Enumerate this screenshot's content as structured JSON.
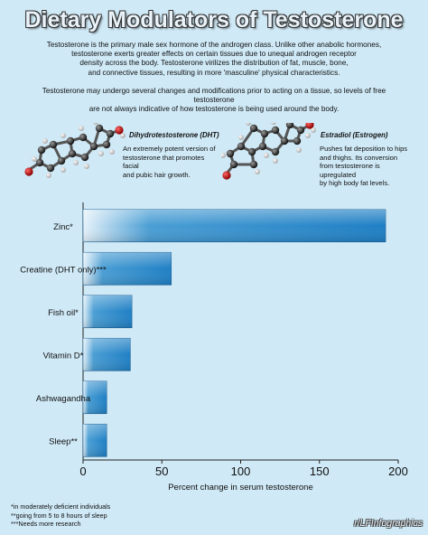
{
  "header": {
    "title": "Dietary Modulators of Testosterone",
    "intro_lines": [
      "Testosterone is the primary male sex hormone of the androgen class. Unlike other anabolic hormones,",
      "testosterone exerts greater effects on certain tissues due to unequal androgen receptor",
      "density across the body.  Testosterone virilizes the distribution of fat, muscle, bone,",
      "and connective tissues, resulting in more 'masculine' physical characteristics."
    ],
    "intro2_lines": [
      "Testosterone may undergo several changes and modifications prior to acting on a tissue, so levels of free testosterone",
      "are not always indicative of how testosterone is being used around the body."
    ]
  },
  "molecules": {
    "dht": {
      "title": "Dihydrotestosterone (DHT)",
      "desc_lines": [
        "An extremely potent version of",
        "testosterone that promotes facial",
        "and pubic hair growth."
      ]
    },
    "estradiol": {
      "title": "Estradiol (Estrogen)",
      "desc_lines": [
        "Pushes fat deposition to hips",
        "and thighs. Its conversion",
        "from testosterone is upregulated",
        "by high body fat levels."
      ]
    }
  },
  "chart_data": {
    "type": "bar",
    "orientation": "horizontal",
    "categories": [
      "Zinc*",
      "Creatine (DHT only)***",
      "Fish oil*",
      "Vitamin D*",
      "Ashwagandha",
      "Sleep**"
    ],
    "values": [
      192,
      56,
      31,
      30,
      15,
      15
    ],
    "xlabel": "Percent change in serum testosterone",
    "xlim": [
      0,
      200
    ],
    "xticks": [
      0,
      50,
      100,
      150,
      200
    ],
    "grid": false,
    "bar_color": "#1f7fc4",
    "bar_fade_color": "#e6f2fa"
  },
  "footnotes": [
    "*in moderately deficient individuals",
    "**going from 5 to 8 hours of sleep",
    "***Needs more research"
  ],
  "credit": "r/LFInfographics",
  "colors": {
    "background": "#cfe9f6",
    "accent": "#1f7fc4"
  }
}
